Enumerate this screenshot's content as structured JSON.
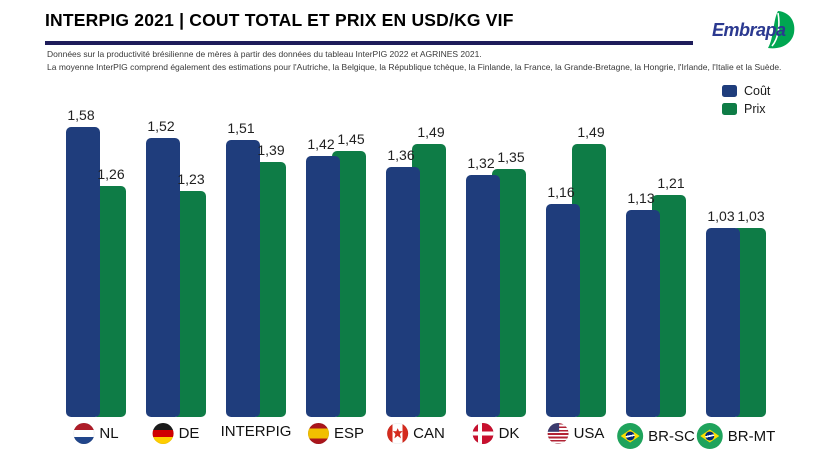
{
  "header": {
    "title": "INTERPIG 2021 | COUT TOTAL ET PRIX EN USD/KG VIF",
    "subtitle_line1": "Données sur la productivité brésilienne de mères à partir des données du tableau InterPIG 2022 et AGRINES 2021.",
    "subtitle_line2": "La moyenne InterPIG comprend également des estimations pour l'Autriche, la Belgique, la République tchèque, la Finlande, la France, la Grande-Bretagne, la Hongrie, l'Irlande, l'Italie et la Suède.",
    "logo_text": "Embrapa"
  },
  "colors": {
    "cout": "#1F3D7C",
    "prix": "#0E7C46",
    "divider": "#1E1C5A",
    "logo_blue": "#2B3990",
    "logo_green": "#00A651"
  },
  "chart_data": {
    "type": "bar",
    "title": "INTERPIG 2021 | COUT TOTAL ET PRIX EN USD/KG VIF",
    "categories": [
      "NL",
      "DE",
      "INTERPIG",
      "ESP",
      "CAN",
      "DK",
      "USA",
      "BR-SC",
      "BR-MT"
    ],
    "flags": [
      "nl",
      "de",
      "",
      "es",
      "ca",
      "dk",
      "us",
      "br",
      "br"
    ],
    "series": [
      {
        "name": "Coût",
        "color": "#1F3D7C",
        "values": [
          1.58,
          1.52,
          1.51,
          1.42,
          1.36,
          1.32,
          1.16,
          1.13,
          1.03
        ]
      },
      {
        "name": "Prix",
        "color": "#0E7C46",
        "values": [
          1.26,
          1.23,
          1.39,
          1.45,
          1.49,
          1.35,
          1.49,
          1.21,
          1.03
        ]
      }
    ],
    "value_labels": [
      [
        "1,58",
        "1,26"
      ],
      [
        "1,52",
        "1,23"
      ],
      [
        "1,51",
        "1,39"
      ],
      [
        "1,42",
        "1,45"
      ],
      [
        "1,36",
        "1,49"
      ],
      [
        "1,32",
        "1,35"
      ],
      [
        "1,16",
        "1,49"
      ],
      [
        "1,13",
        "1,21"
      ],
      [
        "1,03",
        "1,03"
      ]
    ],
    "xlabel": "",
    "ylabel": "",
    "ylim": [
      0,
      1.7
    ],
    "grid": false,
    "axis_lines": false,
    "legend_position": "top-right",
    "decimal_separator": ","
  }
}
